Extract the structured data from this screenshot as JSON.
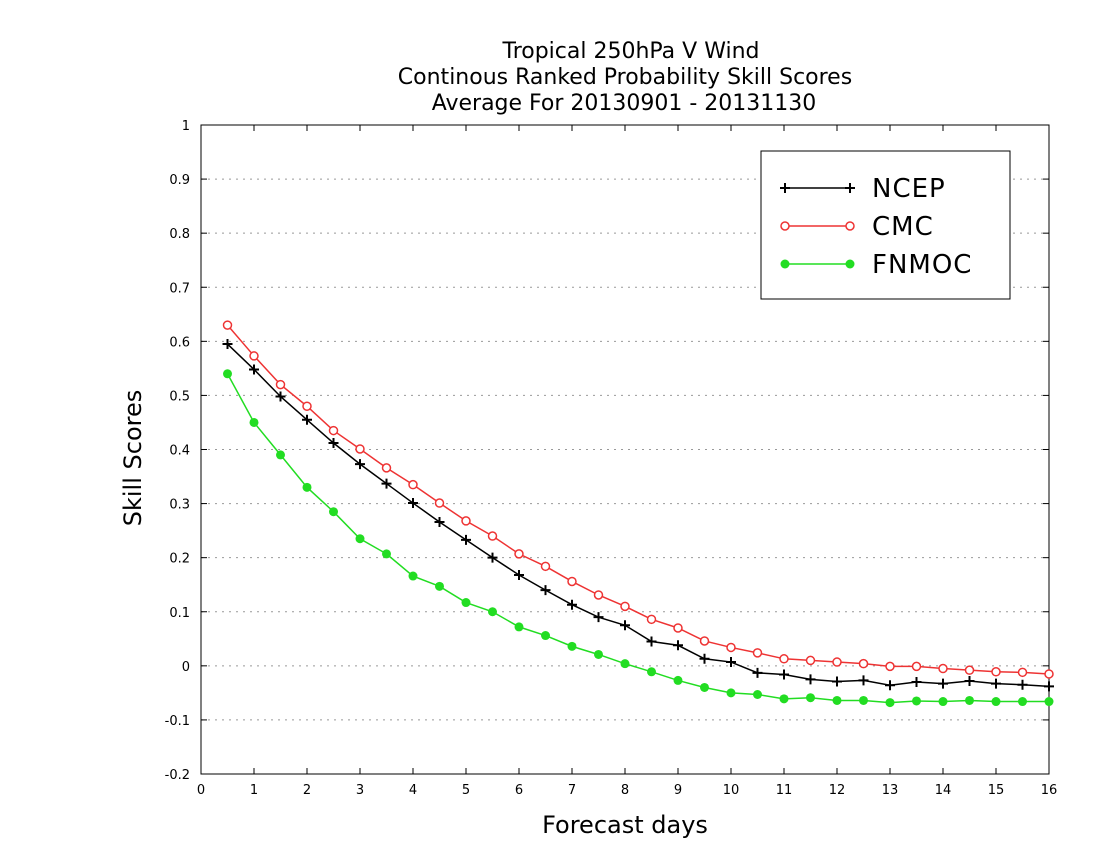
{
  "chart_data": {
    "type": "line",
    "title_lines": [
      "Tropical 250hPa V Wind",
      "Continous Ranked Probability Skill Scores",
      "Average For 20130901 - 20131130"
    ],
    "xlabel": "Forecast days",
    "ylabel": "Skill Scores",
    "xlim": [
      0,
      16
    ],
    "ylim": [
      -0.2,
      1
    ],
    "x_ticks": [
      0,
      1,
      2,
      3,
      4,
      5,
      6,
      7,
      8,
      9,
      10,
      11,
      12,
      13,
      14,
      15,
      16
    ],
    "y_ticks": [
      -0.2,
      -0.1,
      0,
      0.1,
      0.2,
      0.3,
      0.4,
      0.5,
      0.6,
      0.7,
      0.8,
      0.9,
      1
    ],
    "y_tick_labels": [
      "-0.2",
      "-0.1",
      "0",
      "0.1",
      "0.2",
      "0.3",
      "0.4",
      "0.5",
      "0.6",
      "0.7",
      "0.8",
      "0.9",
      "1"
    ],
    "grid": "horizontal dotted",
    "legend_position": "top-right",
    "x": [
      0.5,
      1,
      1.5,
      2,
      2.5,
      3,
      3.5,
      4,
      4.5,
      5,
      5.5,
      6,
      6.5,
      7,
      7.5,
      8,
      8.5,
      9,
      9.5,
      10,
      10.5,
      11,
      11.5,
      12,
      12.5,
      13,
      13.5,
      14,
      14.5,
      15,
      15.5,
      16
    ],
    "series": [
      {
        "name": "NCEP",
        "color": "#000000",
        "marker": "plus",
        "values": [
          0.595,
          0.548,
          0.498,
          0.455,
          0.412,
          0.373,
          0.337,
          0.301,
          0.266,
          0.233,
          0.2,
          0.168,
          0.14,
          0.113,
          0.09,
          0.075,
          0.045,
          0.038,
          0.013,
          0.007,
          -0.013,
          -0.016,
          -0.025,
          -0.029,
          -0.027,
          -0.036,
          -0.03,
          -0.033,
          -0.028,
          -0.033,
          -0.035,
          -0.038
        ]
      },
      {
        "name": "CMC",
        "color": "#ee3333",
        "marker": "open-circle",
        "values": [
          0.63,
          0.573,
          0.52,
          0.48,
          0.435,
          0.401,
          0.366,
          0.335,
          0.301,
          0.268,
          0.24,
          0.207,
          0.184,
          0.156,
          0.131,
          0.11,
          0.086,
          0.07,
          0.046,
          0.034,
          0.024,
          0.013,
          0.01,
          0.007,
          0.004,
          -0.001,
          -0.001,
          -0.005,
          -0.008,
          -0.011,
          -0.012,
          -0.015
        ]
      },
      {
        "name": "FNMOC",
        "color": "#22dd22",
        "marker": "filled-circle",
        "values": [
          0.54,
          0.45,
          0.39,
          0.33,
          0.285,
          0.235,
          0.207,
          0.166,
          0.147,
          0.117,
          0.1,
          0.072,
          0.056,
          0.036,
          0.021,
          0.004,
          -0.011,
          -0.027,
          -0.04,
          -0.05,
          -0.053,
          -0.061,
          -0.059,
          -0.064,
          -0.064,
          -0.068,
          -0.065,
          -0.066,
          -0.064,
          -0.066,
          -0.066,
          -0.066
        ]
      }
    ]
  }
}
